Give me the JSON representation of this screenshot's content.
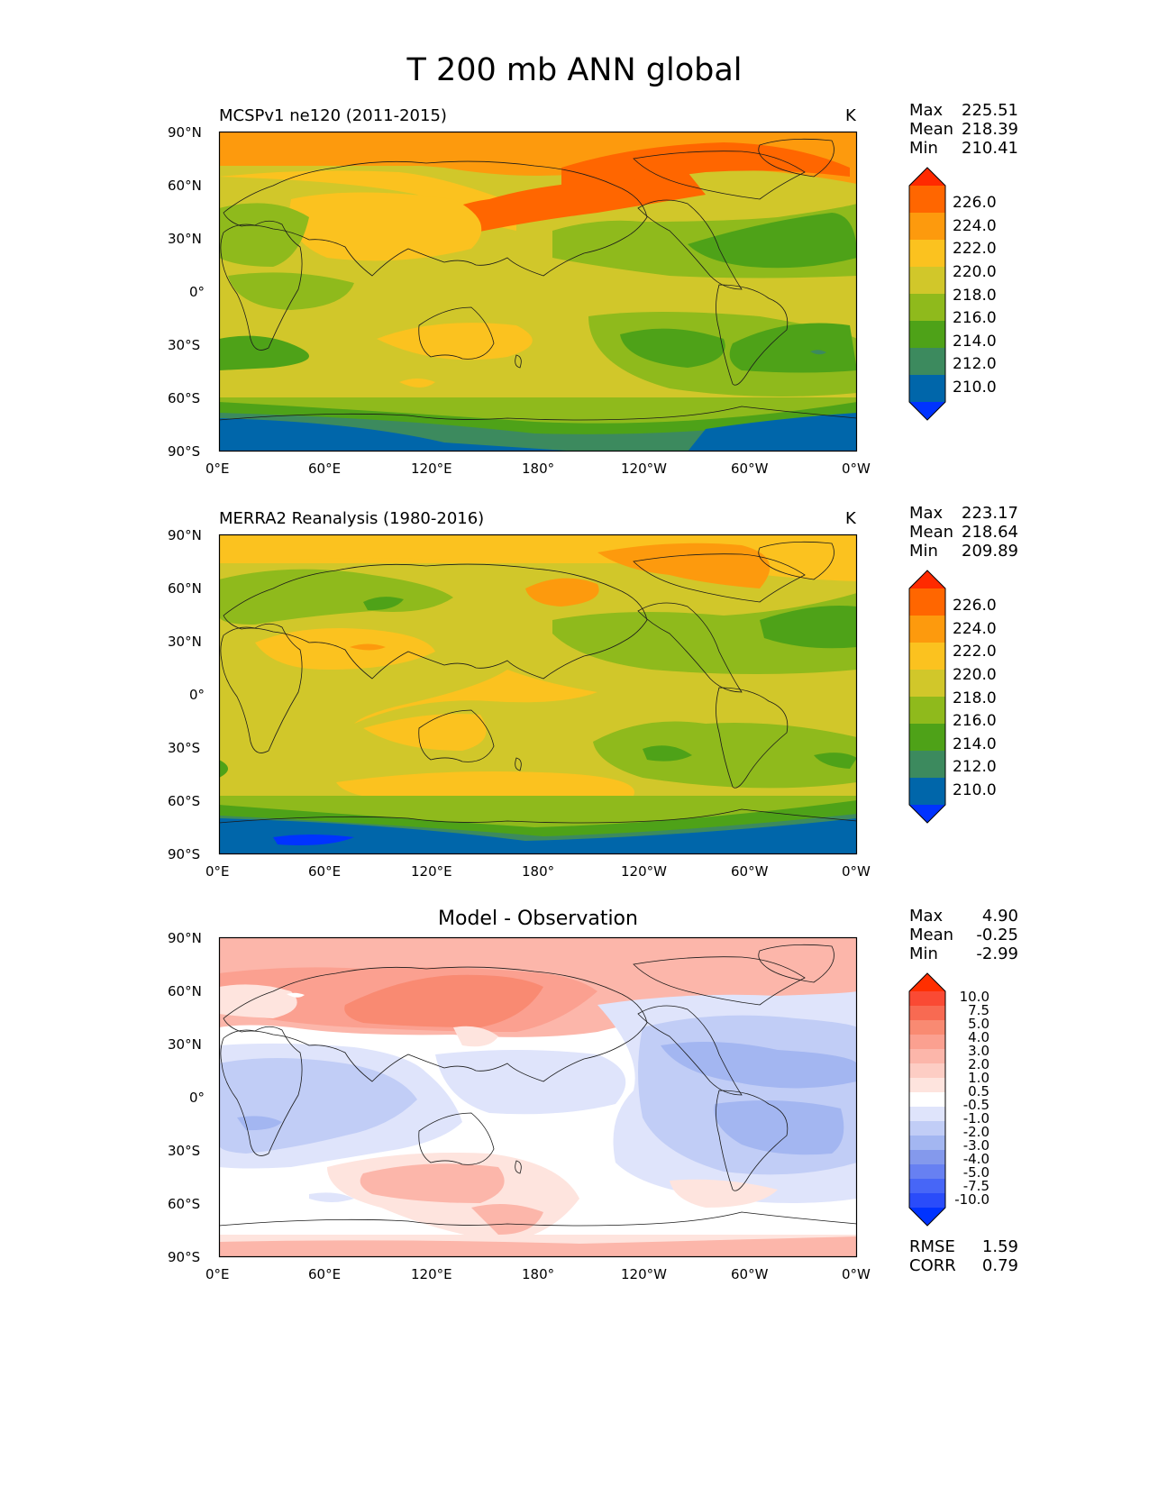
{
  "title": "T 200 mb ANN global",
  "xticks": [
    "0°E",
    "60°E",
    "120°E",
    "180°",
    "120°W",
    "60°W",
    "0°W"
  ],
  "yticks": [
    "90°N",
    "60°N",
    "30°N",
    "0°",
    "30°S",
    "60°S",
    "90°S"
  ],
  "panels": {
    "model": {
      "title": "MCSPv1 ne120 (2011-2015)",
      "units": "K",
      "stats": {
        "max_label": "Max",
        "max": "225.51",
        "mean_label": "Mean",
        "mean": "218.39",
        "min_label": "Min",
        "min": "210.41"
      }
    },
    "obs": {
      "title": "MERRA2 Reanalysis (1980-2016)",
      "units": "K",
      "stats": {
        "max_label": "Max",
        "max": "223.17",
        "mean_label": "Mean",
        "mean": "218.64",
        "min_label": "Min",
        "min": "209.89"
      }
    },
    "diff": {
      "title": "Model - Observation",
      "stats": {
        "max_label": "Max",
        "max": "4.90",
        "mean_label": "Mean",
        "mean": "-0.25",
        "min_label": "Min",
        "min": "-2.99"
      },
      "metrics": {
        "rmse_label": "RMSE",
        "rmse": "1.59",
        "corr_label": "CORR",
        "corr": "0.79"
      }
    }
  },
  "colorbars": {
    "abs": {
      "labels": [
        "226.0",
        "224.0",
        "222.0",
        "220.0",
        "218.0",
        "216.0",
        "214.0",
        "212.0",
        "210.0"
      ],
      "colors": [
        "#ff2a00",
        "#ff6600",
        "#fd9a0d",
        "#fbc21f",
        "#d1c72a",
        "#8fba1c",
        "#4ea218",
        "#3c8a5e",
        "#0066aa",
        "#0033ff"
      ]
    },
    "diff": {
      "labels": [
        "10.0",
        "7.5",
        "5.0",
        "4.0",
        "3.0",
        "2.0",
        "1.0",
        "0.5",
        "-0.5",
        "-1.0",
        "-2.0",
        "-3.0",
        "-4.0",
        "-5.0",
        "-7.5",
        "-10.0"
      ],
      "colors": [
        "#ff2f00",
        "#fa4a34",
        "#f86a52",
        "#f98a72",
        "#fba090",
        "#fcb6aa",
        "#fdcdc4",
        "#fee4de",
        "#ffffff",
        "#dfe4fb",
        "#c1cdf6",
        "#a3b6f1",
        "#8499ec",
        "#6780f2",
        "#4766f7",
        "#2a4cfa",
        "#0033ff"
      ]
    }
  },
  "chart_data": [
    {
      "type": "heatmap",
      "title": "MCSPv1 ne120 (2011-2015)",
      "variable": "T 200 mb ANN",
      "units": "K",
      "x": "longitude 0°E to 360° (0°W)",
      "y": "latitude 90°S to 90°N",
      "levels": [
        210,
        212,
        214,
        216,
        218,
        220,
        222,
        224,
        226
      ],
      "max": 225.51,
      "mean": 218.39,
      "min": 210.41
    },
    {
      "type": "heatmap",
      "title": "MERRA2 Reanalysis (1980-2016)",
      "variable": "T 200 mb ANN",
      "units": "K",
      "levels": [
        210,
        212,
        214,
        216,
        218,
        220,
        222,
        224,
        226
      ],
      "max": 223.17,
      "mean": 218.64,
      "min": 209.89
    },
    {
      "type": "heatmap",
      "title": "Model - Observation",
      "levels": [
        -10,
        -7.5,
        -5,
        -4,
        -3,
        -2,
        -1,
        -0.5,
        0.5,
        1,
        2,
        3,
        4,
        5,
        7.5,
        10
      ],
      "max": 4.9,
      "mean": -0.25,
      "min": -2.99,
      "rmse": 1.59,
      "corr": 0.79
    }
  ]
}
